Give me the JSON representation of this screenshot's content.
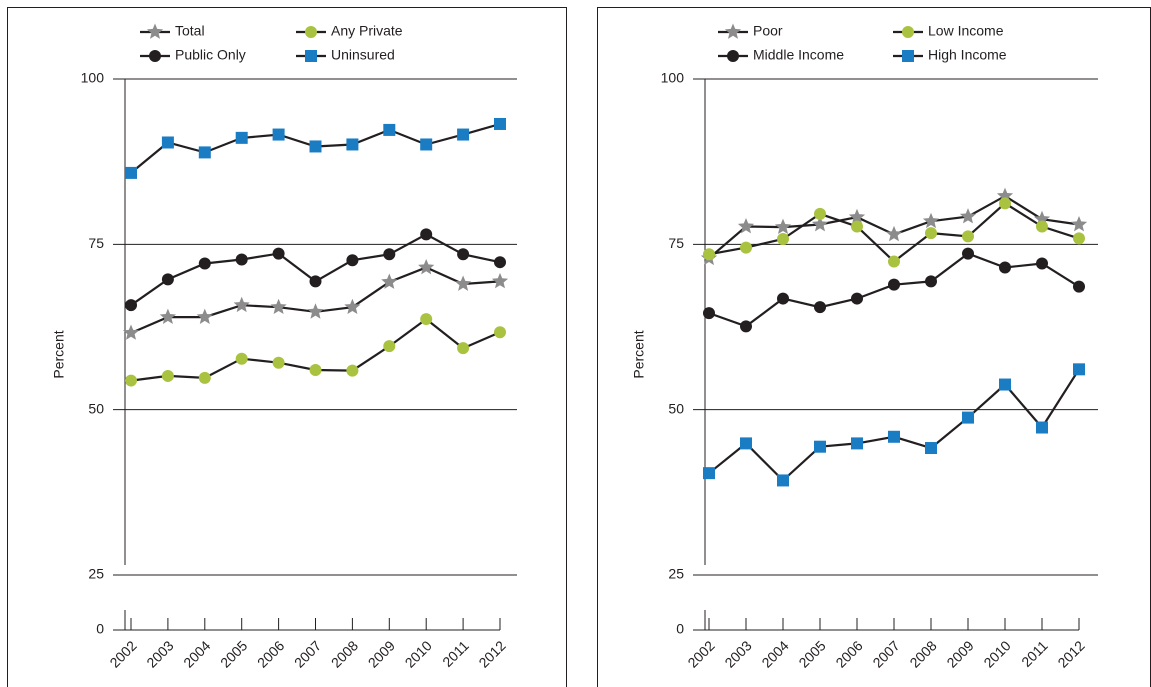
{
  "chart_data": [
    {
      "type": "line",
      "y_label": "Percent",
      "categories": [
        "2002",
        "2003",
        "2004",
        "2005",
        "2006",
        "2007",
        "2008",
        "2009",
        "2010",
        "2011",
        "2012"
      ],
      "ylim": [
        0,
        100
      ],
      "yticks": [
        0,
        25,
        50,
        75,
        100
      ],
      "axis_break": true,
      "grid": true,
      "line_color": "#231f20",
      "series": [
        {
          "name": "Total",
          "marker": "star",
          "color": "#8c8c8c",
          "values": [
            61.6,
            64.0,
            64.0,
            65.8,
            65.5,
            64.8,
            65.5,
            69.3,
            71.5,
            69.0,
            69.4
          ]
        },
        {
          "name": "Any Private",
          "marker": "circle",
          "color": "#a9c23f",
          "values": [
            54.4,
            55.1,
            54.8,
            57.7,
            57.1,
            56.0,
            55.9,
            59.6,
            63.7,
            59.3,
            61.7
          ]
        },
        {
          "name": "Public Only",
          "marker": "circle",
          "color": "#231f20",
          "values": [
            65.8,
            69.7,
            72.1,
            72.7,
            73.6,
            69.4,
            72.6,
            73.5,
            76.5,
            73.5,
            72.3
          ]
        },
        {
          "name": "Uninsured",
          "marker": "square",
          "color": "#1a7dc4",
          "values": [
            85.8,
            90.4,
            88.9,
            91.1,
            91.6,
            89.8,
            90.1,
            92.3,
            90.1,
            91.6,
            93.2
          ]
        }
      ]
    },
    {
      "type": "line",
      "y_label": "Percent",
      "categories": [
        "2002",
        "2003",
        "2004",
        "2005",
        "2006",
        "2007",
        "2008",
        "2009",
        "2010",
        "2011",
        "2012"
      ],
      "ylim": [
        0,
        100
      ],
      "yticks": [
        0,
        25,
        50,
        75,
        100
      ],
      "axis_break": true,
      "grid": true,
      "line_color": "#231f20",
      "series": [
        {
          "name": "Poor",
          "marker": "star",
          "color": "#8c8c8c",
          "values": [
            72.9,
            77.7,
            77.6,
            78.0,
            79.1,
            76.5,
            78.5,
            79.2,
            82.3,
            78.8,
            78.0
          ]
        },
        {
          "name": "Low Income",
          "marker": "circle",
          "color": "#a9c23f",
          "values": [
            73.5,
            74.5,
            75.8,
            79.6,
            77.7,
            72.4,
            76.7,
            76.2,
            81.2,
            77.7,
            75.9
          ]
        },
        {
          "name": "Middle Income",
          "marker": "circle",
          "color": "#231f20",
          "values": [
            64.6,
            62.6,
            66.8,
            65.5,
            66.8,
            68.9,
            69.4,
            73.6,
            71.5,
            72.1,
            68.6
          ]
        },
        {
          "name": "High Income",
          "marker": "square",
          "color": "#1a7dc4",
          "values": [
            40.4,
            44.9,
            39.3,
            44.4,
            44.9,
            45.9,
            44.2,
            48.8,
            53.8,
            47.3,
            56.1
          ]
        }
      ]
    }
  ]
}
